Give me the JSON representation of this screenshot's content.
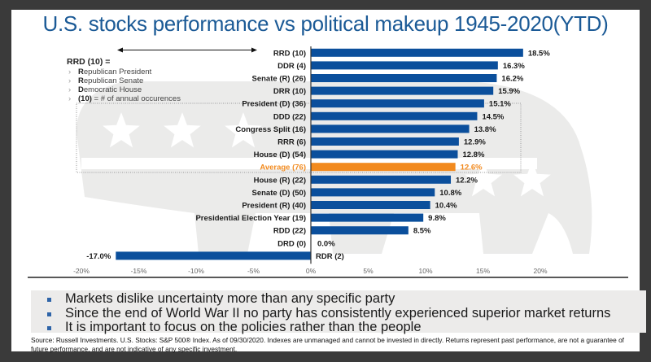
{
  "title": "U.S. stocks performance vs political makeup 1945-2020(YTD)",
  "colors": {
    "bar": "#0b4f9c",
    "average_bar": "#f28a1e",
    "title": "#1b5a96",
    "watermark": "#ebebea"
  },
  "legend": {
    "title": "RRD (10) =",
    "items": [
      {
        "bold": "R",
        "rest": "epublican President"
      },
      {
        "bold": "R",
        "rest": "epublican Senate"
      },
      {
        "bold": "D",
        "rest": "emocratic House"
      },
      {
        "bold": "(10)",
        "rest": " =  # of annual occurences"
      }
    ]
  },
  "chart_data": {
    "type": "bar",
    "orientation": "horizontal",
    "title": "U.S. stocks performance vs political makeup 1945-2020(YTD)",
    "xlabel": "",
    "ylabel": "",
    "xlim": [
      -20,
      20
    ],
    "xticks": [
      "-20%",
      "-15%",
      "-10%",
      "-5%",
      "0%",
      "5%",
      "10%",
      "15%",
      "20%"
    ],
    "xtick_values": [
      -20,
      -15,
      -10,
      -5,
      0,
      5,
      10,
      15,
      20
    ],
    "grid": false,
    "categories": [
      "RRD (10)",
      "DDR (4)",
      "Senate (R) (26)",
      "DRR (10)",
      "President (D) (36)",
      "DDD (22)",
      "Congress Split (16)",
      "RRR (6)",
      "House (D) (54)",
      "Average (76)",
      "House (R) (22)",
      "Senate (D) (50)",
      "President (R) (40)",
      "Presidential Election Year (19)",
      "RDD (22)",
      "DRD (0)",
      "RDR (2)"
    ],
    "values": [
      18.5,
      16.3,
      16.2,
      15.9,
      15.1,
      14.5,
      13.8,
      12.9,
      12.8,
      12.6,
      12.2,
      10.8,
      10.4,
      9.8,
      8.5,
      0.0,
      -17.0
    ],
    "value_labels": [
      "18.5%",
      "16.3%",
      "16.2%",
      "15.9%",
      "15.1%",
      "14.5%",
      "13.8%",
      "12.9%",
      "12.8%",
      "12.6%",
      "12.2%",
      "10.8%",
      "10.4%",
      "9.8%",
      "8.5%",
      "0.0%",
      "-17.0%"
    ],
    "highlight": "Average (76)"
  },
  "bullets": [
    "Markets dislike uncertainty more than any specific party",
    "Since the end of World War II no party has consistently experienced superior market returns",
    "It is important to focus on the policies rather than the people"
  ],
  "source": "Source: Russell Investments.  U.S. Stocks: S&P 500® Index.  As of 09/30/2020.  Indexes are unmanaged and cannot be invested in directly.  Returns represent past performance, are not a guarantee of future performance, and are not indicative of any specific investment."
}
